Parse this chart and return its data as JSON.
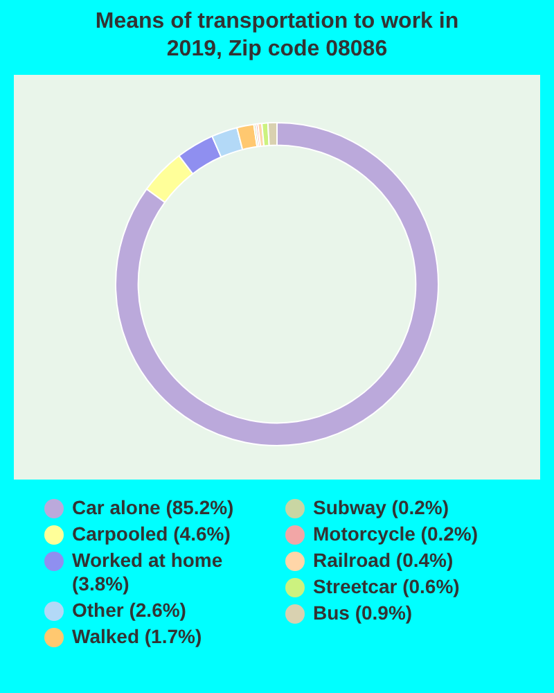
{
  "chart_data": {
    "type": "donut",
    "title": "Means of transportation to work in 2019, Zip code 08086",
    "categories": [
      "Car alone",
      "Carpooled",
      "Worked at home",
      "Other",
      "Walked",
      "Subway",
      "Motorcycle",
      "Railroad",
      "Streetcar",
      "Bus"
    ],
    "values": [
      85.2,
      4.6,
      3.8,
      2.6,
      1.7,
      0.2,
      0.2,
      0.4,
      0.6,
      0.9
    ],
    "value_labels": [
      "(85.2%)",
      "(4.6%)",
      "(3.8%)",
      "(2.6%)",
      "(1.7%)",
      "(0.2%)",
      "(0.2%)",
      "(0.4%)",
      "(0.6%)",
      "(0.9%)"
    ],
    "colors": [
      "#bba9db",
      "#ffff99",
      "#8f8ff0",
      "#b3d9f7",
      "#ffc870",
      "#c9d6a3",
      "#f2a6a6",
      "#ffd6a8",
      "#ccf27f",
      "#d9d1b0"
    ],
    "legend": "bottom"
  }
}
